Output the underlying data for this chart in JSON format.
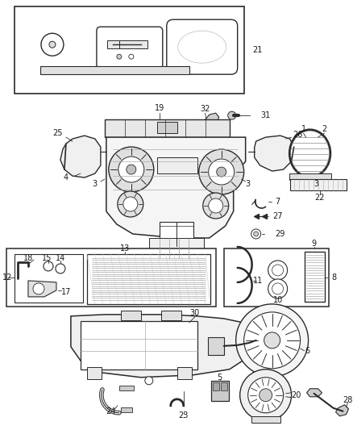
{
  "background_color": "#ffffff",
  "fig_width": 4.38,
  "fig_height": 5.33,
  "dpi": 100,
  "line_color": "#2a2a2a",
  "text_color": "#1a1a1a",
  "label_fontsize": 7.0,
  "thin_lw": 0.6,
  "med_lw": 1.0,
  "thick_lw": 1.5
}
